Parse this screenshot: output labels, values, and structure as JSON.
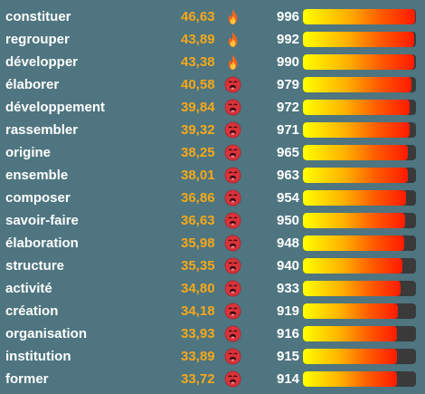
{
  "rows": [
    {
      "word": "constituer",
      "score": "46,63",
      "emoji": "fire",
      "rank": "996",
      "progress": 0.996
    },
    {
      "word": "regrouper",
      "score": "43,89",
      "emoji": "fire",
      "rank": "992",
      "progress": 0.992
    },
    {
      "word": "développer",
      "score": "43,38",
      "emoji": "fire",
      "rank": "990",
      "progress": 0.99
    },
    {
      "word": "élaborer",
      "score": "40,58",
      "emoji": "hot-face",
      "rank": "979",
      "progress": 0.979
    },
    {
      "word": "développement",
      "score": "39,84",
      "emoji": "hot-face",
      "rank": "972",
      "progress": 0.972
    },
    {
      "word": "rassembler",
      "score": "39,32",
      "emoji": "hot-face",
      "rank": "971",
      "progress": 0.971
    },
    {
      "word": "origine",
      "score": "38,25",
      "emoji": "hot-face",
      "rank": "965",
      "progress": 0.965
    },
    {
      "word": "ensemble",
      "score": "38,01",
      "emoji": "hot-face",
      "rank": "963",
      "progress": 0.963
    },
    {
      "word": "composer",
      "score": "36,86",
      "emoji": "hot-face",
      "rank": "954",
      "progress": 0.954
    },
    {
      "word": "savoir-faire",
      "score": "36,63",
      "emoji": "hot-face",
      "rank": "950",
      "progress": 0.95
    },
    {
      "word": "élaboration",
      "score": "35,98",
      "emoji": "hot-face",
      "rank": "948",
      "progress": 0.948
    },
    {
      "word": "structure",
      "score": "35,35",
      "emoji": "hot-face",
      "rank": "940",
      "progress": 0.94
    },
    {
      "word": "activité",
      "score": "34,80",
      "emoji": "hot-face",
      "rank": "933",
      "progress": 0.933
    },
    {
      "word": "création",
      "score": "34,18",
      "emoji": "hot-face",
      "rank": "919",
      "progress": 0.919
    },
    {
      "word": "organisation",
      "score": "33,93",
      "emoji": "hot-face",
      "rank": "916",
      "progress": 0.916
    },
    {
      "word": "institution",
      "score": "33,89",
      "emoji": "hot-face",
      "rank": "915",
      "progress": 0.915
    },
    {
      "word": "former",
      "score": "33,72",
      "emoji": "hot-face",
      "rank": "914",
      "progress": 0.914
    }
  ],
  "colors": {
    "background": "#4e7580",
    "word": "#ffffff",
    "score": "#f6a81a",
    "rank": "#ffffff",
    "bar_track": "#3a3a3a",
    "bar_start": "#ffff00",
    "bar_end": "#ff1a00"
  }
}
